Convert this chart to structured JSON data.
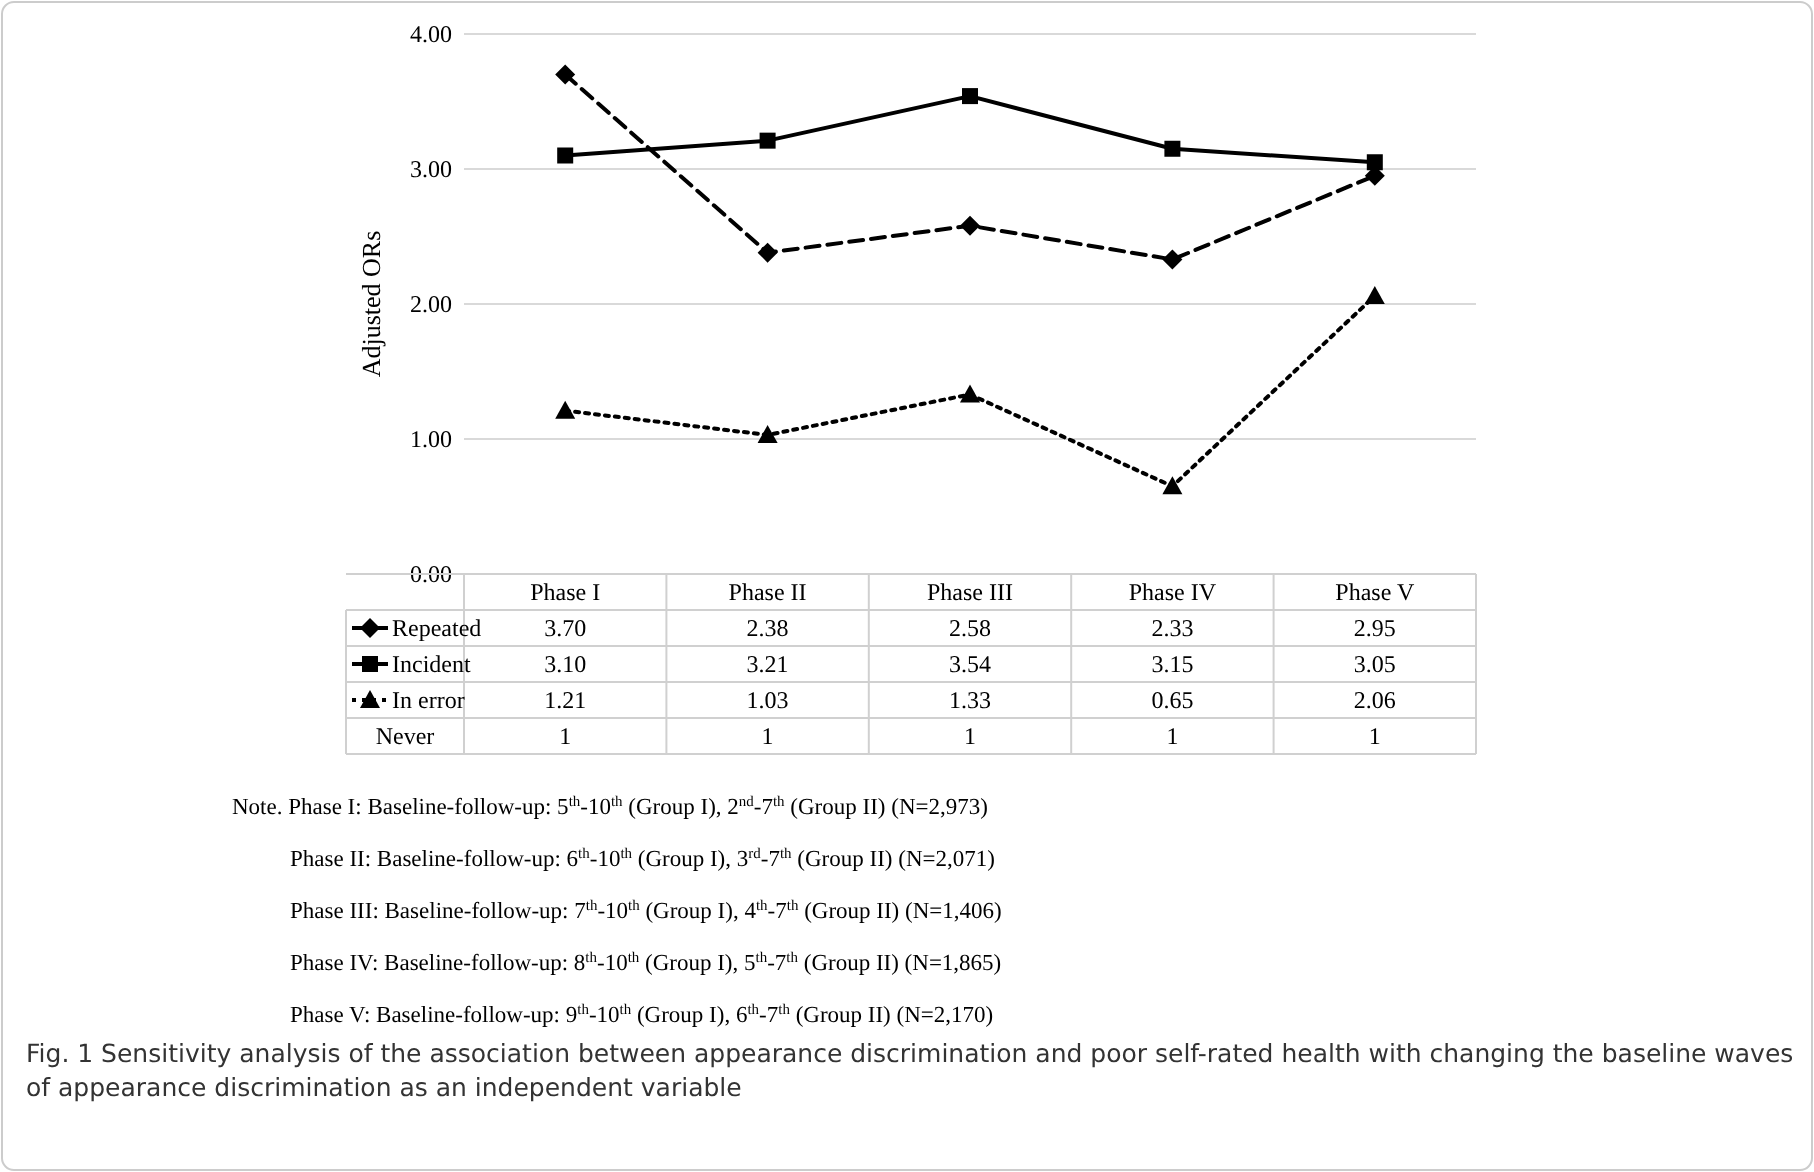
{
  "chart_data": {
    "type": "line",
    "ylabel": "Adjusted ORs",
    "categories": [
      "Phase I",
      "Phase II",
      "Phase III",
      "Phase IV",
      "Phase V"
    ],
    "ylim": [
      0,
      4
    ],
    "yticks": [
      {
        "value": 0,
        "label": "0.00"
      },
      {
        "value": 1,
        "label": "1.00"
      },
      {
        "value": 2,
        "label": "2.00"
      },
      {
        "value": 3,
        "label": "3.00"
      },
      {
        "value": 4,
        "label": "4.00"
      }
    ],
    "grid": "y",
    "legend": "bottom",
    "series": [
      {
        "name": "Repeated",
        "color": "#000000",
        "line_style": "dashed",
        "marker": "diamond",
        "values": [
          3.7,
          2.38,
          2.58,
          2.33,
          2.95
        ],
        "value_labels": [
          "3.70",
          "2.38",
          "2.58",
          "2.33",
          "2.95"
        ]
      },
      {
        "name": "Incident",
        "color": "#000000",
        "line_style": "solid",
        "marker": "square",
        "values": [
          3.1,
          3.21,
          3.54,
          3.15,
          3.05
        ],
        "value_labels": [
          "3.10",
          "3.21",
          "3.54",
          "3.15",
          "3.05"
        ]
      },
      {
        "name": "In error",
        "color": "#000000",
        "line_style": "dotted",
        "marker": "triangle",
        "values": [
          1.21,
          1.03,
          1.33,
          0.65,
          2.06
        ],
        "value_labels": [
          "1.21",
          "1.03",
          "1.33",
          "0.65",
          "2.06"
        ]
      },
      {
        "name": "Never",
        "color": "#000000",
        "values": [
          null,
          null,
          null,
          null,
          null
        ],
        "value_labels": [
          "1",
          "1",
          "1",
          "1",
          "1"
        ]
      }
    ],
    "annotations": [
      "Note. Phase I: Baseline-follow-up: 5$^{th}$-10$^{th}$ (Group I), 2$^{nd}$-7$^{th}$ (Group II) (N=2,973)",
      "Phase II: Baseline-follow-up: 6$^{th}$-10$^{th}$ (Group I), 3$^{rd}$-7$^{th}$ (Group II) (N=2,071)",
      "Phase III: Baseline-follow-up: 7$^{th}$-10$^{th}$ (Group I), 4$^{th}$-7$^{th}$ (Group II) (N=1,406)",
      "Phase IV: Baseline-follow-up: 8$^{th}$-10$^{th}$ (Group I), 5$^{th}$-7$^{th}$ (Group II) (N=1,865)",
      "Phase V: Baseline-follow-up: 9$^{th}$-10$^{th}$ (Group I), 6$^{th}$-7$^{th}$ (Group II) (N=2,170)",
      "Fig. 1 Sensitivity analysis of the association between appearance discrimination and poor self-rated health with changing the baseline waves of appearance discrimination as an independent variable"
    ]
  }
}
